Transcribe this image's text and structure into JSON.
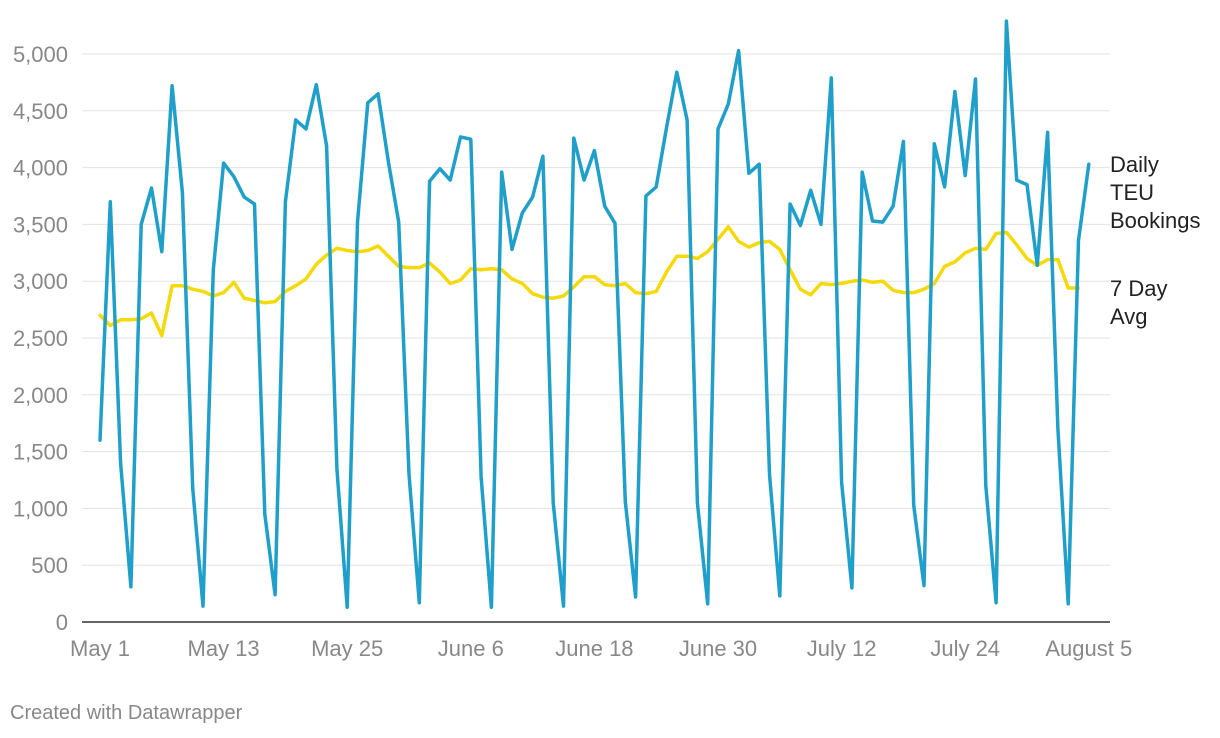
{
  "chart_data": {
    "type": "line",
    "title": "",
    "xlabel": "",
    "ylabel": "",
    "ylim": [
      0,
      5000
    ],
    "yticks": [
      0,
      500,
      1000,
      1500,
      2000,
      2500,
      3000,
      3500,
      4000,
      4500,
      5000
    ],
    "ytick_labels": [
      "0",
      "500",
      "1,000",
      "1,500",
      "2,000",
      "2,500",
      "3,000",
      "3,500",
      "4,000",
      "4,500",
      "5,000"
    ],
    "xticks": [
      {
        "day": 0,
        "label": "May 1"
      },
      {
        "day": 12,
        "label": "May 13"
      },
      {
        "day": 24,
        "label": "May 25"
      },
      {
        "day": 36,
        "label": "June 6"
      },
      {
        "day": 48,
        "label": "June 18"
      },
      {
        "day": 60,
        "label": "June 30"
      },
      {
        "day": 72,
        "label": "July 12"
      },
      {
        "day": 84,
        "label": "July 24"
      },
      {
        "day": 96,
        "label": "August 5"
      }
    ],
    "series": [
      {
        "name": "Daily TEU Bookings",
        "legend_lines": [
          "Daily",
          "TEU",
          "Bookings"
        ],
        "color": "#1f9fc9",
        "values": [
          1600,
          3700,
          1400,
          310,
          3500,
          3820,
          3260,
          4720,
          3780,
          1180,
          140,
          3100,
          4040,
          3920,
          3740,
          3680,
          950,
          240,
          3700,
          4420,
          4340,
          4730,
          4190,
          1350,
          130,
          3520,
          4570,
          4650,
          4050,
          3520,
          1300,
          170,
          3880,
          3990,
          3890,
          4270,
          4250,
          1280,
          130,
          3960,
          3280,
          3600,
          3740,
          4100,
          1050,
          140,
          4260,
          3890,
          4150,
          3660,
          3510,
          1060,
          220,
          3750,
          3830,
          4350,
          4840,
          4420,
          1050,
          160,
          4340,
          4560,
          5030,
          3950,
          4030,
          1300,
          230,
          3680,
          3490,
          3800,
          3500,
          4790,
          1230,
          300,
          3960,
          3530,
          3520,
          3660,
          4230,
          1030,
          320,
          4210,
          3830,
          4670,
          3930,
          4780,
          1200,
          170,
          5290,
          3890,
          3850,
          3140,
          4310,
          1700,
          160,
          3360,
          4030
        ]
      },
      {
        "name": "7 Day Avg",
        "legend_lines": [
          "7 Day",
          "Avg"
        ],
        "color": "#f5d90a",
        "values": [
          2700,
          2610,
          2660,
          2660,
          2670,
          2720,
          2520,
          2960,
          2960,
          2930,
          2910,
          2870,
          2900,
          2990,
          2850,
          2830,
          2810,
          2820,
          2910,
          2960,
          3020,
          3150,
          3230,
          3290,
          3270,
          3260,
          3270,
          3310,
          3220,
          3130,
          3120,
          3120,
          3160,
          3080,
          2980,
          3010,
          3110,
          3100,
          3110,
          3100,
          3020,
          2980,
          2890,
          2860,
          2850,
          2870,
          2950,
          3040,
          3040,
          2970,
          2960,
          2980,
          2900,
          2890,
          2910,
          3080,
          3220,
          3220,
          3200,
          3260,
          3370,
          3480,
          3350,
          3300,
          3340,
          3350,
          3280,
          3100,
          2930,
          2880,
          2980,
          2970,
          2980,
          3000,
          3010,
          2990,
          3000,
          2920,
          2900,
          2900,
          2930,
          2980,
          3130,
          3170,
          3250,
          3290,
          3280,
          3420,
          3430,
          3320,
          3200,
          3140,
          3190,
          3190,
          2940,
          2940
        ]
      }
    ],
    "grid": true,
    "legend": "right, at end of lines"
  },
  "footer": {
    "credit": "Created with Datawrapper"
  }
}
